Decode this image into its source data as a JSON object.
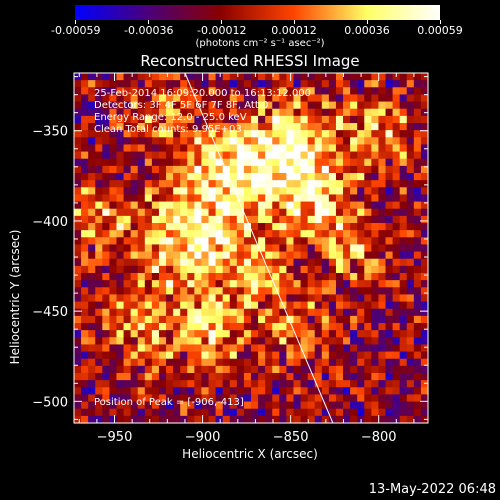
{
  "colorbar": {
    "ticks": [
      "-0.00059",
      "-0.00036",
      "-0.00012",
      "0.00012",
      "0.00036",
      "0.00059"
    ],
    "unit": "(photons cm⁻² s⁻¹ asec⁻²)",
    "colors": [
      "#0000ff",
      "#4b007a",
      "#8b0000",
      "#ff4500",
      "#ffff66",
      "#ffffff"
    ]
  },
  "title": "Reconstructed RHESSI Image",
  "info": {
    "line1": "25-Feb-2014 16:09:20.000 to 16:13:12.000",
    "line2": "Detectors: 3F 4F 5F 6F 7F 8F, Att 0",
    "line3": "Energy Range: 12.0 - 25.0 keV",
    "line4": "Clean     Total counts: 9.95E+03",
    "peak": "Position of Peak = [-906,-413]"
  },
  "footer": "13-May-2022 06:48",
  "chart_data": {
    "type": "heatmap",
    "title": "Reconstructed RHESSI Image",
    "xlabel": "Heliocentric X (arcsec)",
    "ylabel": "Heliocentric Y (arcsec)",
    "xlim": [
      -973,
      -772
    ],
    "ylim": [
      -512,
      -318
    ],
    "xticks": [
      -950,
      -900,
      -850,
      -800
    ],
    "yticks": [
      -350,
      -400,
      -450,
      -500
    ],
    "colorbar_range": [
      -0.00059,
      0.00059
    ],
    "limb_line": {
      "x": [
        -910,
        -826
      ],
      "y": [
        -318,
        -512
      ]
    },
    "peak": {
      "x": -906,
      "y": -413
    },
    "grid": false,
    "legend": "none"
  }
}
